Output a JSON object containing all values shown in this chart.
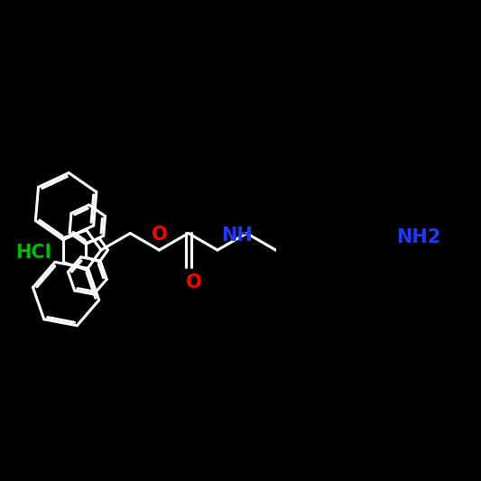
{
  "bg_color": "#000000",
  "line_color": "#ffffff",
  "NH2_color": "#1e3aff",
  "NH_color": "#1e3aff",
  "O_color": "#ff0000",
  "HCl_color": "#00bb00",
  "line_width": 2.2,
  "font_size": 15,
  "NH2_text": "NH2",
  "NH_text": "NH",
  "O1_text": "O",
  "O2_text": "O",
  "HCl_text": "HCl"
}
